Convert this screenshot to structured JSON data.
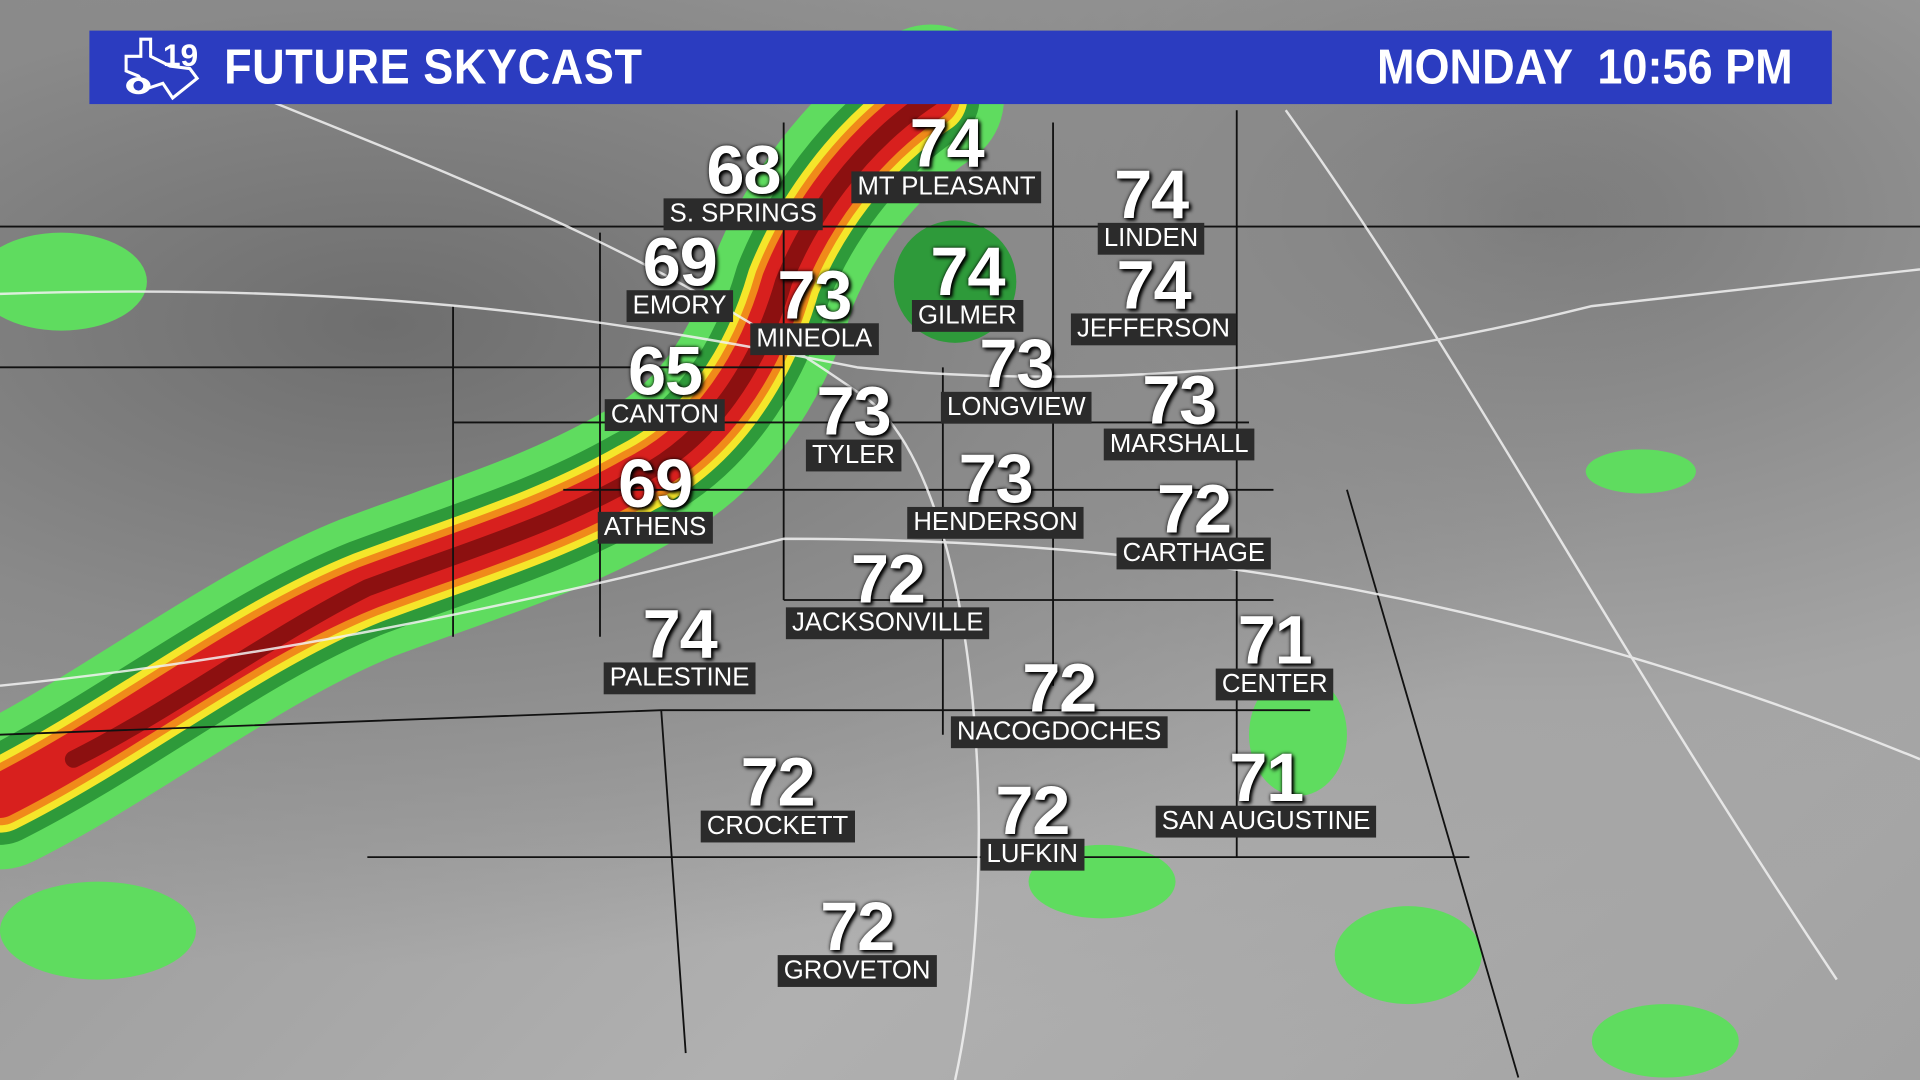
{
  "header": {
    "title": "FUTURE SKYCAST",
    "day": "MONDAY",
    "time": "10:56 PM",
    "logo_text": "19",
    "brand_color": "#2b3cc0"
  },
  "cities": [
    {
      "name": "S. SPRINGS",
      "temp": "68"
    },
    {
      "name": "MT PLEASANT",
      "temp": "74"
    },
    {
      "name": "LINDEN",
      "temp": "74"
    },
    {
      "name": "EMORY",
      "temp": "69"
    },
    {
      "name": "MINEOLA",
      "temp": "73"
    },
    {
      "name": "GILMER",
      "temp": "74"
    },
    {
      "name": "JEFFERSON",
      "temp": "74"
    },
    {
      "name": "CANTON",
      "temp": "65"
    },
    {
      "name": "LONGVIEW",
      "temp": "73"
    },
    {
      "name": "TYLER",
      "temp": "73"
    },
    {
      "name": "MARSHALL",
      "temp": "73"
    },
    {
      "name": "ATHENS",
      "temp": "69"
    },
    {
      "name": "HENDERSON",
      "temp": "73"
    },
    {
      "name": "CARTHAGE",
      "temp": "72"
    },
    {
      "name": "JACKSONVILLE",
      "temp": "72"
    },
    {
      "name": "PALESTINE",
      "temp": "74"
    },
    {
      "name": "CENTER",
      "temp": "71"
    },
    {
      "name": "NACOGDOCHES",
      "temp": "72"
    },
    {
      "name": "CROCKETT",
      "temp": "72"
    },
    {
      "name": "SAN AUGUSTINE",
      "temp": "71"
    },
    {
      "name": "LUFKIN",
      "temp": "72"
    },
    {
      "name": "GROVETON",
      "temp": "72"
    }
  ],
  "radar_colors": {
    "light": "#5fdc5f",
    "moderate": "#2e9a3a",
    "heavy": "#f5e62a",
    "intense": "#f08a1a",
    "severe": "#d8201e",
    "extreme": "#8c1010"
  }
}
